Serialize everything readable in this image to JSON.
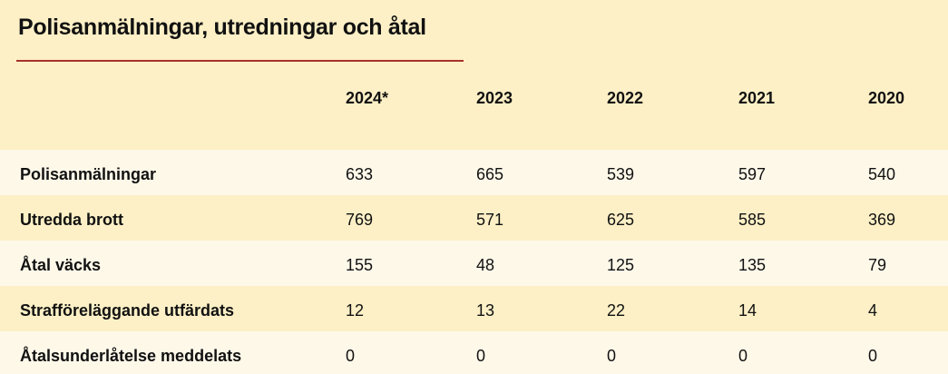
{
  "header": {
    "title": "Polisanmälningar, utredningar och åtal"
  },
  "table": {
    "columns": [
      "2024*",
      "2023",
      "2022",
      "2021",
      "2020"
    ],
    "rows": [
      {
        "label": "Polisanmälningar",
        "values": [
          633,
          665,
          539,
          597,
          540
        ]
      },
      {
        "label": "Utredda brott",
        "values": [
          769,
          571,
          625,
          585,
          369
        ]
      },
      {
        "label": "Åtal väcks",
        "values": [
          155,
          48,
          125,
          135,
          79
        ]
      },
      {
        "label": "Strafföreläggande utfärdats",
        "values": [
          12,
          13,
          22,
          14,
          4
        ]
      },
      {
        "label": "Åtalsunderlåtelse meddelats",
        "values": [
          0,
          0,
          0,
          0,
          0
        ]
      }
    ]
  }
}
